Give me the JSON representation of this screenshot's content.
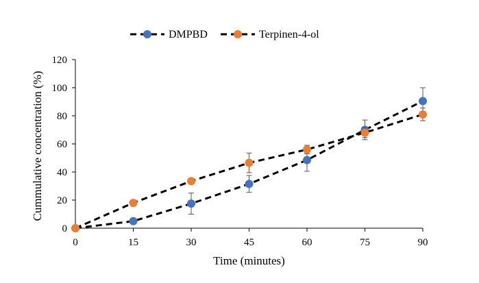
{
  "chart_data": {
    "type": "line",
    "title": "",
    "xlabel": "Time (minutes)",
    "ylabel": "Cummulative concentration (%)",
    "xlim": [
      0,
      90
    ],
    "ylim": [
      0,
      120
    ],
    "x_ticks": [
      "0",
      "15",
      "30",
      "45",
      "60",
      "75",
      "90"
    ],
    "y_ticks": [
      "0",
      "20",
      "40",
      "60",
      "80",
      "100",
      "120"
    ],
    "grid": false,
    "legend_position": "top-center",
    "x": [
      0,
      15,
      30,
      45,
      60,
      75,
      90
    ],
    "series": [
      {
        "name": "DMPBD",
        "color": "#4472C4",
        "line_style": "dashed",
        "values": [
          0,
          5,
          17.5,
          31.5,
          48.5,
          70,
          90.5
        ],
        "error": [
          0,
          1.5,
          7.5,
          6,
          8,
          7,
          9.5
        ]
      },
      {
        "name": "Terpinen-4-ol",
        "color": "#ED7D31",
        "line_style": "dashed",
        "values": [
          0,
          18,
          33.5,
          46.5,
          56,
          68,
          81
        ],
        "error": [
          0,
          1,
          2,
          7,
          3,
          3.5,
          4.5
        ]
      }
    ]
  }
}
